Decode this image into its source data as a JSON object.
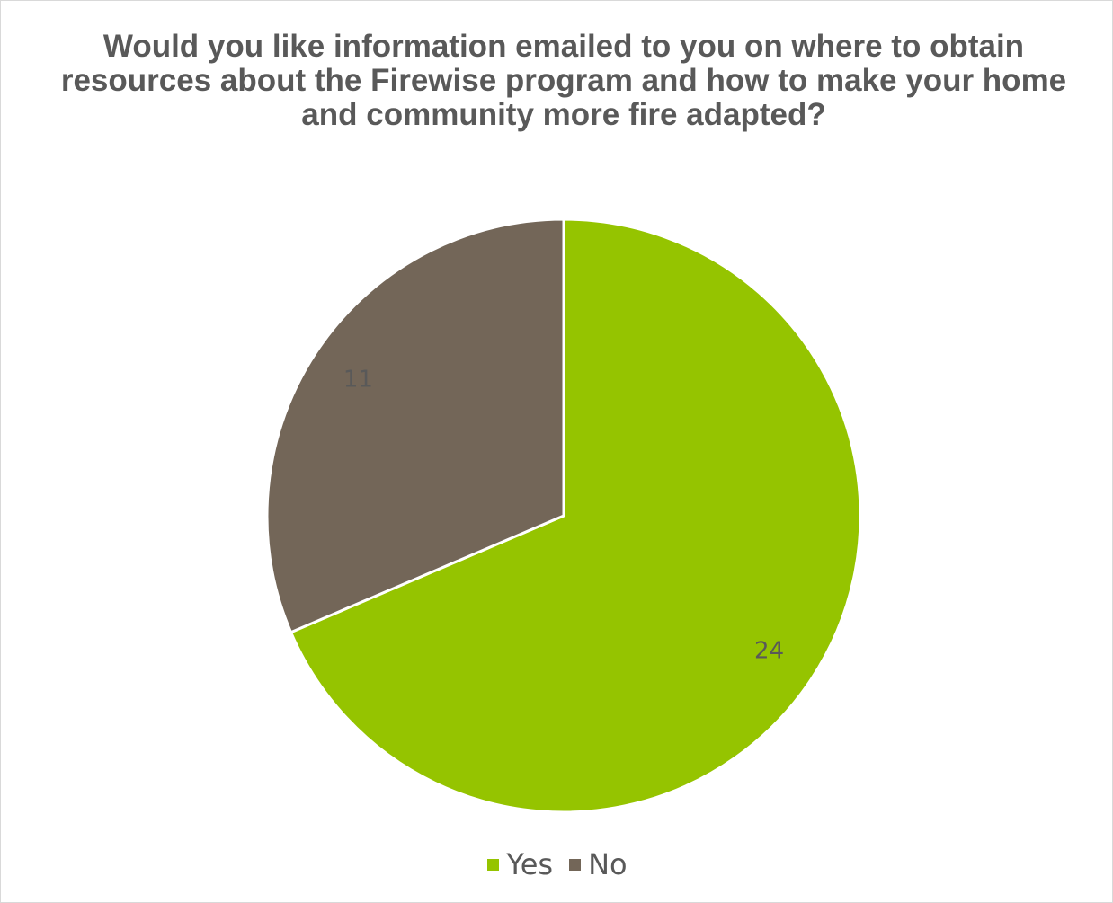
{
  "chart_data": {
    "type": "pie",
    "title": "Would you like information emailed to you on where to obtain resources about the Firewise program and how to make your home and community more fire adapted?",
    "categories": [
      "Yes",
      "No"
    ],
    "values": [
      24,
      11
    ],
    "colors": [
      "#95c400",
      "#736658"
    ],
    "data_labels": [
      "24",
      "11"
    ],
    "legend_position": "bottom",
    "start_angle": "12 o'clock, clockwise"
  }
}
